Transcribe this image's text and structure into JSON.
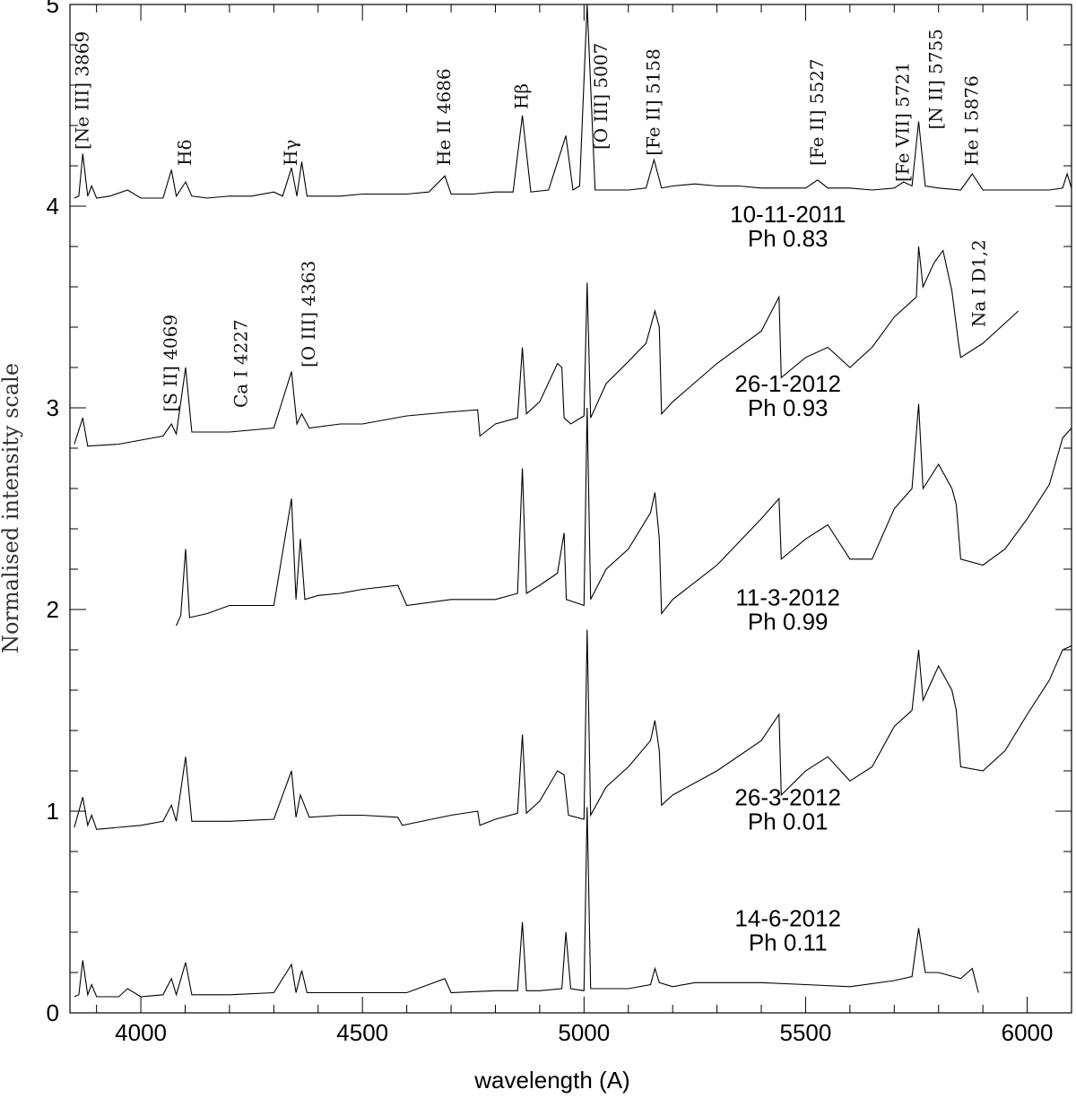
{
  "chart_data": {
    "type": "line",
    "title": "",
    "xlabel": "wavelength (A)",
    "ylabel": "Normalised intensity scale",
    "xlim": [
      3840,
      6100
    ],
    "ylim": [
      0,
      5
    ],
    "x_ticks": [
      4000,
      4500,
      5000,
      5500,
      6000
    ],
    "x_tick_labels": [
      "4000",
      "4500",
      "5000",
      "5500",
      "6000"
    ],
    "y_ticks": [
      0,
      1,
      2,
      3,
      4,
      5
    ],
    "y_tick_labels": [
      "0",
      "1",
      "2",
      "3",
      "4",
      "5"
    ],
    "grid": false,
    "line_labels": [
      {
        "text": "[Ne III] 3869",
        "x": 3869,
        "y": 4.28
      },
      {
        "text": "Hδ",
        "x": 4101,
        "y": 4.2
      },
      {
        "text": "Hγ",
        "x": 4340,
        "y": 4.2
      },
      {
        "text": "He II 4686",
        "x": 4686,
        "y": 4.2
      },
      {
        "text": "Hβ",
        "x": 4861,
        "y": 4.48
      },
      {
        "text": "[O III] 5007",
        "x": 5040,
        "y": 4.28
      },
      {
        "text": "[Fe II] 5158",
        "x": 5158,
        "y": 4.25
      },
      {
        "text": "[Fe II] 5527",
        "x": 5527,
        "y": 4.2
      },
      {
        "text": "[Fe VII] 5721",
        "x": 5721,
        "y": 4.12
      },
      {
        "text": "[N II] 5755",
        "x": 5795,
        "y": 4.38
      },
      {
        "text": "He I 5876",
        "x": 5876,
        "y": 4.2
      },
      {
        "text": "Na I D1,2",
        "x": 5893,
        "y": 3.4
      },
      {
        "text": "[S II] 4069",
        "x": 4069,
        "y": 2.98
      },
      {
        "text": "Ca I 4227",
        "x": 4227,
        "y": 3.0
      },
      {
        "text": "[O III] 4363",
        "x": 4380,
        "y": 3.2
      }
    ],
    "annotations": [
      {
        "date": "10-11-2011",
        "phase": "Ph 0.83",
        "x": 5460,
        "y": 3.92,
        "y2": 3.8
      },
      {
        "date": "26-1-2012",
        "phase": "Ph 0.93",
        "x": 5460,
        "y": 3.08,
        "y2": 2.96
      },
      {
        "date": "11-3-2012",
        "phase": "Ph 0.99",
        "x": 5460,
        "y": 2.02,
        "y2": 1.9
      },
      {
        "date": "26-3-2012",
        "phase": "Ph 0.01",
        "x": 5460,
        "y": 1.03,
        "y2": 0.91
      },
      {
        "date": "14-6-2012",
        "phase": "Ph 0.11",
        "x": 5460,
        "y": 0.43,
        "y2": 0.31
      }
    ],
    "series": [
      {
        "date": "10-11-2011",
        "x": [
          3850,
          3860,
          3869,
          3880,
          3889,
          3900,
          3930,
          3970,
          4000,
          4050,
          4069,
          4080,
          4101,
          4115,
          4150,
          4200,
          4250,
          4300,
          4320,
          4340,
          4352,
          4363,
          4375,
          4400,
          4450,
          4500,
          4550,
          4600,
          4650,
          4686,
          4700,
          4750,
          4800,
          4840,
          4861,
          4880,
          4920,
          4959,
          4975,
          4990,
          5007,
          5025,
          5050,
          5100,
          5140,
          5158,
          5175,
          5200,
          5250,
          5300,
          5350,
          5400,
          5450,
          5500,
          5527,
          5550,
          5600,
          5650,
          5700,
          5721,
          5740,
          5755,
          5770,
          5800,
          5850,
          5876,
          5900,
          5950,
          6000,
          6050,
          6080,
          6090,
          6100
        ],
        "y": [
          4.04,
          4.05,
          4.26,
          4.05,
          4.1,
          4.04,
          4.05,
          4.08,
          4.04,
          4.04,
          4.18,
          4.05,
          4.12,
          4.05,
          4.04,
          4.05,
          4.05,
          4.07,
          4.05,
          4.19,
          4.05,
          4.22,
          4.05,
          4.05,
          4.05,
          4.06,
          4.06,
          4.06,
          4.07,
          4.15,
          4.06,
          4.06,
          4.07,
          4.07,
          4.45,
          4.07,
          4.08,
          4.35,
          4.08,
          4.1,
          5.0,
          4.08,
          4.08,
          4.08,
          4.09,
          4.23,
          4.09,
          4.1,
          4.11,
          4.1,
          4.1,
          4.09,
          4.09,
          4.09,
          4.13,
          4.09,
          4.09,
          4.08,
          4.09,
          4.12,
          4.1,
          4.42,
          4.1,
          4.09,
          4.08,
          4.16,
          4.08,
          4.08,
          4.08,
          4.08,
          4.09,
          4.16,
          4.09
        ]
      },
      {
        "date": "26-1-2012",
        "x": [
          3850,
          3869,
          3880,
          3950,
          4000,
          4050,
          4069,
          4080,
          4101,
          4115,
          4200,
          4300,
          4340,
          4352,
          4363,
          4380,
          4450,
          4500,
          4600,
          4700,
          4760,
          4765,
          4800,
          4850,
          4861,
          4870,
          4900,
          4940,
          4950,
          4955,
          4970,
          5000,
          5007,
          5015,
          5050,
          5100,
          5140,
          5160,
          5170,
          5175,
          5200,
          5300,
          5400,
          5440,
          5445,
          5500,
          5550,
          5600,
          5650,
          5700,
          5750,
          5755,
          5765,
          5790,
          5810,
          5830,
          5845,
          5850,
          5900,
          5950,
          5980
        ],
        "y": [
          2.82,
          2.95,
          2.81,
          2.82,
          2.84,
          2.86,
          2.92,
          2.87,
          3.2,
          2.88,
          2.88,
          2.9,
          3.18,
          2.92,
          2.97,
          2.9,
          2.92,
          2.92,
          2.96,
          2.98,
          2.99,
          2.86,
          2.92,
          2.95,
          3.3,
          2.97,
          3.03,
          3.22,
          3.2,
          2.95,
          2.92,
          2.96,
          3.62,
          2.95,
          3.12,
          3.23,
          3.32,
          3.48,
          3.4,
          2.97,
          3.03,
          3.22,
          3.38,
          3.55,
          3.15,
          3.25,
          3.3,
          3.2,
          3.3,
          3.45,
          3.55,
          3.8,
          3.6,
          3.72,
          3.78,
          3.58,
          3.32,
          3.25,
          3.32,
          3.42,
          3.48
        ]
      },
      {
        "date": "11-3-2012",
        "x": [
          4080,
          4090,
          4101,
          4110,
          4150,
          4200,
          4250,
          4300,
          4340,
          4350,
          4360,
          4370,
          4400,
          4450,
          4500,
          4580,
          4600,
          4700,
          4800,
          4850,
          4861,
          4870,
          4900,
          4940,
          4955,
          4960,
          5000,
          5007,
          5015,
          5050,
          5100,
          5150,
          5160,
          5170,
          5175,
          5200,
          5300,
          5400,
          5440,
          5445,
          5500,
          5550,
          5600,
          5650,
          5700,
          5740,
          5755,
          5765,
          5800,
          5830,
          5840,
          5850,
          5900,
          5950,
          6000,
          6050,
          6080,
          6100
        ],
        "y": [
          1.92,
          1.97,
          2.3,
          1.96,
          1.98,
          2.02,
          2.02,
          2.02,
          2.55,
          2.05,
          2.35,
          2.05,
          2.07,
          2.08,
          2.1,
          2.12,
          2.02,
          2.05,
          2.05,
          2.08,
          2.7,
          2.08,
          2.12,
          2.18,
          2.38,
          2.05,
          2.02,
          3.0,
          2.05,
          2.2,
          2.3,
          2.48,
          2.58,
          2.35,
          1.98,
          2.05,
          2.22,
          2.45,
          2.55,
          2.25,
          2.35,
          2.42,
          2.25,
          2.25,
          2.5,
          2.6,
          3.02,
          2.6,
          2.72,
          2.6,
          2.52,
          2.25,
          2.22,
          2.3,
          2.45,
          2.62,
          2.85,
          2.9
        ]
      },
      {
        "date": "26-3-2012",
        "x": [
          3850,
          3869,
          3880,
          3889,
          3900,
          3950,
          4000,
          4050,
          4069,
          4080,
          4101,
          4115,
          4200,
          4300,
          4340,
          4350,
          4360,
          4380,
          4450,
          4500,
          4580,
          4590,
          4700,
          4760,
          4765,
          4800,
          4850,
          4861,
          4870,
          4900,
          4940,
          4955,
          4965,
          5000,
          5007,
          5015,
          5050,
          5100,
          5150,
          5160,
          5170,
          5175,
          5200,
          5300,
          5400,
          5440,
          5445,
          5500,
          5550,
          5600,
          5650,
          5700,
          5740,
          5755,
          5765,
          5800,
          5830,
          5840,
          5850,
          5900,
          5950,
          6000,
          6050,
          6080,
          6100
        ],
        "y": [
          0.92,
          1.07,
          0.93,
          0.98,
          0.91,
          0.92,
          0.93,
          0.95,
          1.03,
          0.95,
          1.27,
          0.95,
          0.95,
          0.96,
          1.2,
          0.97,
          1.08,
          0.97,
          0.98,
          0.98,
          0.97,
          0.93,
          0.98,
          1.0,
          0.93,
          0.96,
          0.99,
          1.38,
          0.99,
          1.05,
          1.2,
          1.18,
          0.98,
          0.96,
          1.9,
          0.98,
          1.12,
          1.22,
          1.35,
          1.45,
          1.3,
          1.03,
          1.08,
          1.2,
          1.35,
          1.48,
          1.08,
          1.2,
          1.27,
          1.15,
          1.22,
          1.42,
          1.5,
          1.8,
          1.55,
          1.72,
          1.6,
          1.5,
          1.22,
          1.2,
          1.3,
          1.48,
          1.65,
          1.8,
          1.82
        ]
      },
      {
        "date": "14-6-2012",
        "x": [
          3850,
          3860,
          3869,
          3880,
          3889,
          3900,
          3950,
          3970,
          4000,
          4050,
          4069,
          4080,
          4101,
          4115,
          4200,
          4300,
          4340,
          4350,
          4363,
          4375,
          4400,
          4500,
          4600,
          4686,
          4700,
          4800,
          4850,
          4861,
          4870,
          4900,
          4950,
          4959,
          4970,
          5000,
          5007,
          5015,
          5050,
          5100,
          5150,
          5160,
          5170,
          5200,
          5250,
          5300,
          5400,
          5500,
          5600,
          5700,
          5740,
          5755,
          5770,
          5800,
          5850,
          5876,
          5890
        ],
        "y": [
          0.08,
          0.09,
          0.26,
          0.09,
          0.14,
          0.08,
          0.08,
          0.12,
          0.08,
          0.09,
          0.17,
          0.09,
          0.25,
          0.09,
          0.09,
          0.1,
          0.24,
          0.1,
          0.21,
          0.1,
          0.1,
          0.1,
          0.1,
          0.17,
          0.1,
          0.11,
          0.11,
          0.45,
          0.11,
          0.11,
          0.12,
          0.4,
          0.12,
          0.11,
          1.02,
          0.12,
          0.12,
          0.12,
          0.14,
          0.22,
          0.15,
          0.13,
          0.15,
          0.15,
          0.15,
          0.14,
          0.13,
          0.16,
          0.18,
          0.42,
          0.2,
          0.2,
          0.17,
          0.22,
          0.1
        ]
      }
    ]
  }
}
